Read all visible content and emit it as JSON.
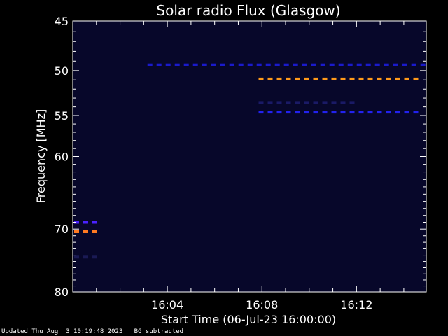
{
  "chart_data": {
    "type": "heatmap",
    "title": "Solar radio Flux (Glasgow)",
    "xlabel": "Start Time (06-Jul-23 16:00:00)",
    "ylabel": "Frequency [MHz]",
    "x_unit": "minutes after 16:00",
    "xlim": [
      0.0,
      14.95
    ],
    "ylim": [
      45,
      80
    ],
    "y_scale": "log, increasing downward",
    "x_ticks": [
      {
        "value": 4,
        "label": "16:04"
      },
      {
        "value": 8,
        "label": "16:08"
      },
      {
        "value": 12,
        "label": "16:12"
      }
    ],
    "y_ticks": [
      {
        "value": 45,
        "label": "45"
      },
      {
        "value": 50,
        "label": "50"
      },
      {
        "value": 55,
        "label": "55"
      },
      {
        "value": 60,
        "label": "60"
      },
      {
        "value": 70,
        "label": "70"
      },
      {
        "value": 80,
        "label": "80"
      }
    ],
    "grid": false,
    "emission_bands": [
      {
        "freq": 49.4,
        "t_start": 3.1,
        "t_end": 14.95,
        "intensity": "low",
        "color": "#1a1acc"
      },
      {
        "freq": 50.9,
        "t_start": 7.8,
        "t_end": 14.95,
        "intensity": "high",
        "color": "#ff9a1a"
      },
      {
        "freq": 53.5,
        "t_start": 7.8,
        "t_end": 12.0,
        "intensity": "very-low",
        "color": "#1a1a66"
      },
      {
        "freq": 54.6,
        "t_start": 7.8,
        "t_end": 14.95,
        "intensity": "low",
        "color": "#2222ee"
      },
      {
        "freq": 69.0,
        "t_start": 0.0,
        "t_end": 1.2,
        "intensity": "medium",
        "color": "#4a22ff"
      },
      {
        "freq": 70.4,
        "t_start": 0.0,
        "t_end": 1.2,
        "intensity": "high",
        "color": "#ff7a22"
      },
      {
        "freq": 74.3,
        "t_start": 0.0,
        "t_end": 1.2,
        "intensity": "very-low",
        "color": "#1a1a55"
      }
    ],
    "colors": {
      "background": "#000000",
      "plot_background": "#07072a",
      "axis": "#ffffff"
    }
  },
  "footer": {
    "updated": "Updated Thu Aug  3 10:19:48 2023",
    "note": "BG subtracted"
  }
}
